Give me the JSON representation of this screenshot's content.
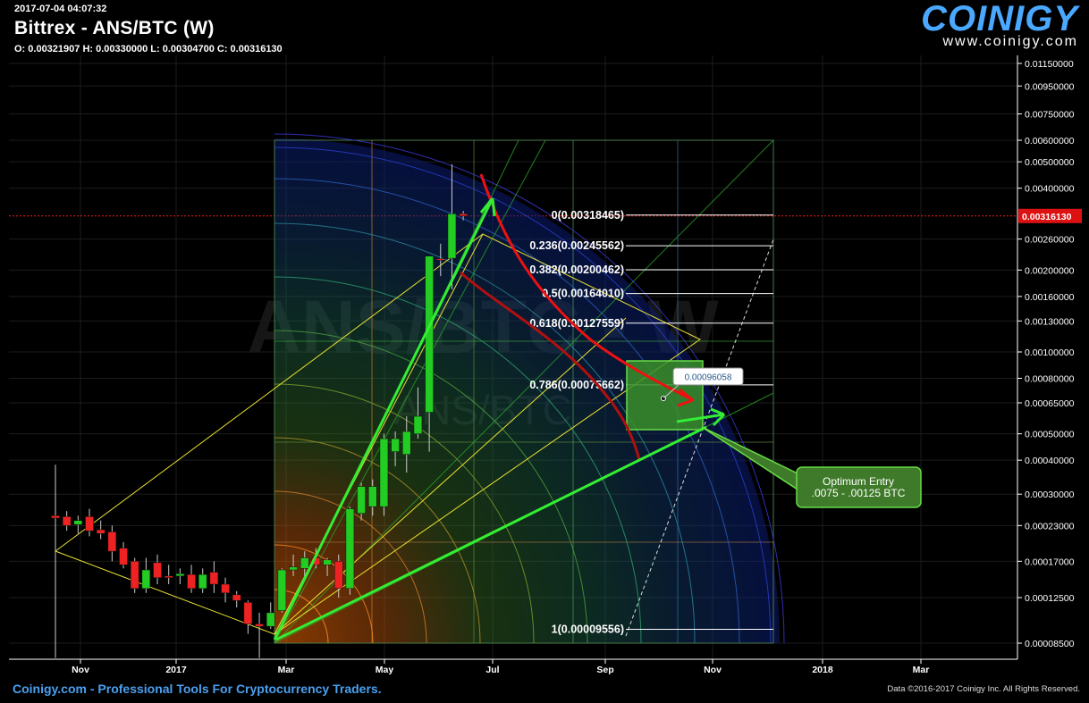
{
  "header": {
    "timestamp": "2017-07-04 04:07:32",
    "title": "Bittrex - ANS/BTC (W)",
    "ohlc": "O: 0.00321907 H: 0.00330000 L: 0.00304700 C: 0.00316130"
  },
  "logo": {
    "name": "COINIGY",
    "url": "www.coinigy.com"
  },
  "watermark": {
    "line1": "ANS/BTC - W",
    "line2": "ANS/BTC"
  },
  "footer": {
    "left": "Coinigy.com - Professional Tools For Cryptocurrency Traders.",
    "right": "Data ©2016-2017 Coinigy Inc. All Rights Reserved."
  },
  "colors": {
    "up": "#22cc22",
    "down": "#ee2222",
    "fib": "#ffffff",
    "arrow_green": "#33ee33",
    "arrow_red": "#ee1111",
    "box": "#3a8f2a"
  },
  "chart_data": {
    "type": "candlestick",
    "title": "Bittrex - ANS/BTC (W)",
    "scale": "log",
    "x_tick_labels": [
      "Nov",
      "2017",
      "Mar",
      "May",
      "Jul",
      "Sep",
      "Nov",
      "2018",
      "Mar"
    ],
    "y_tick_labels": [
      "0.01150000",
      "0.00950000",
      "0.00750000",
      "0.00600000",
      "0.00500000",
      "0.00400000",
      "0.00260000",
      "0.00200000",
      "0.00160000",
      "0.00130000",
      "0.00100000",
      "0.00080000",
      "0.00065000",
      "0.00050000",
      "0.00040000",
      "0.00030000",
      "0.00023000",
      "0.00017000",
      "0.00012500",
      "0.00008500"
    ],
    "y_ticks": [
      0.0115,
      0.0095,
      0.0075,
      0.006,
      0.005,
      0.004,
      0.0026,
      0.002,
      0.0016,
      0.0013,
      0.001,
      0.0008,
      0.00065,
      0.0005,
      0.0004,
      0.0003,
      0.00023,
      0.00017,
      0.000125,
      8.5e-05
    ],
    "current_price": {
      "label": "0.00316130",
      "value": 0.0031613
    },
    "candles": [
      {
        "o": 0.00025,
        "h": 0.000385,
        "l": 7.5e-05,
        "c": 0.000245
      },
      {
        "o": 0.000248,
        "h": 0.00026,
        "l": 0.00022,
        "c": 0.00023
      },
      {
        "o": 0.000232,
        "h": 0.00025,
        "l": 0.000215,
        "c": 0.00024
      },
      {
        "o": 0.000248,
        "h": 0.000265,
        "l": 0.00021,
        "c": 0.00022
      },
      {
        "o": 0.000222,
        "h": 0.00024,
        "l": 0.000205,
        "c": 0.000215
      },
      {
        "o": 0.000218,
        "h": 0.00023,
        "l": 0.00017,
        "c": 0.000185
      },
      {
        "o": 0.00019,
        "h": 0.0002,
        "l": 0.00016,
        "c": 0.000165
      },
      {
        "o": 0.00017,
        "h": 0.000175,
        "l": 0.00013,
        "c": 0.000135
      },
      {
        "o": 0.000135,
        "h": 0.000175,
        "l": 0.00013,
        "c": 0.000158
      },
      {
        "o": 0.000168,
        "h": 0.00018,
        "l": 0.00014,
        "c": 0.000148
      },
      {
        "o": 0.00015,
        "h": 0.000165,
        "l": 0.00014,
        "c": 0.000148
      },
      {
        "o": 0.00015,
        "h": 0.00016,
        "l": 0.00014,
        "c": 0.000153
      },
      {
        "o": 0.000152,
        "h": 0.000165,
        "l": 0.00013,
        "c": 0.000135
      },
      {
        "o": 0.000135,
        "h": 0.00016,
        "l": 0.00013,
        "c": 0.000152
      },
      {
        "o": 0.000155,
        "h": 0.00017,
        "l": 0.00013,
        "c": 0.00014
      },
      {
        "o": 0.00014,
        "h": 0.000148,
        "l": 0.00012,
        "c": 0.00013
      },
      {
        "o": 0.000128,
        "h": 0.000132,
        "l": 0.000115,
        "c": 0.000122
      },
      {
        "o": 0.00012,
        "h": 0.000122,
        "l": 9.2e-05,
        "c": 0.0001
      },
      {
        "o": 0.0001,
        "h": 0.00011,
        "l": 7.5e-05,
        "c": 9.8e-05
      },
      {
        "o": 9.8e-05,
        "h": 0.00012,
        "l": 9.6e-05,
        "c": 0.00011
      },
      {
        "o": 0.000112,
        "h": 0.00016,
        "l": 0.00011,
        "c": 0.000158
      },
      {
        "o": 0.000158,
        "h": 0.00018,
        "l": 0.00015,
        "c": 0.000162
      },
      {
        "o": 0.00016,
        "h": 0.000185,
        "l": 0.00015,
        "c": 0.000175
      },
      {
        "o": 0.000175,
        "h": 0.00019,
        "l": 0.00016,
        "c": 0.000165
      },
      {
        "o": 0.000165,
        "h": 0.000175,
        "l": 0.00015,
        "c": 0.000172
      },
      {
        "o": 0.00017,
        "h": 0.00018,
        "l": 0.000125,
        "c": 0.000135
      },
      {
        "o": 0.000135,
        "h": 0.00027,
        "l": 0.000128,
        "c": 0.000265
      },
      {
        "o": 0.000255,
        "h": 0.00033,
        "l": 0.00024,
        "c": 0.00032
      },
      {
        "o": 0.00027,
        "h": 0.00034,
        "l": 0.00025,
        "c": 0.00032
      },
      {
        "o": 0.00027,
        "h": 0.0005,
        "l": 0.00025,
        "c": 0.00048
      },
      {
        "o": 0.00043,
        "h": 0.00051,
        "l": 0.00038,
        "c": 0.00048
      },
      {
        "o": 0.00042,
        "h": 0.00058,
        "l": 0.00036,
        "c": 0.00051
      },
      {
        "o": 0.0005,
        "h": 0.00074,
        "l": 0.00048,
        "c": 0.00058
      },
      {
        "o": 0.0006,
        "h": 0.00225,
        "l": 0.00043,
        "c": 0.00225
      },
      {
        "o": 0.0022,
        "h": 0.0025,
        "l": 0.0019,
        "c": 0.00218
      },
      {
        "o": 0.00221,
        "h": 0.0049,
        "l": 0.0017,
        "c": 0.00322
      },
      {
        "o": 0.003219,
        "h": 0.0033,
        "l": 0.003047,
        "c": 0.003161
      }
    ],
    "fib_levels": [
      {
        "label": "0(0.00318465)",
        "value": 0.00318465
      },
      {
        "label": "0.236(0.00245562)",
        "value": 0.00245562
      },
      {
        "label": "0.382(0.00200462)",
        "value": 0.00200462
      },
      {
        "label": "0.5(0.00164010)",
        "value": 0.0016401
      },
      {
        "label": "0.618(0.00127559)",
        "value": 0.00127559
      },
      {
        "label": "0.786(0.00075662)",
        "value": 0.00075662
      },
      {
        "label": "1(0.00009556)",
        "value": 9.556e-05
      }
    ],
    "price_marker": {
      "label": "0.00096058",
      "value": 0.00096058
    },
    "callout": {
      "line1": "Optimum Entry",
      "line2": ".0075 - .00125 BTC"
    }
  }
}
